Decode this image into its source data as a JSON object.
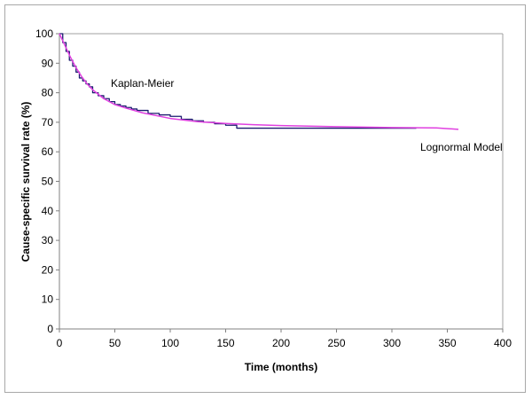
{
  "chart_data": {
    "type": "line",
    "title": "",
    "xlabel": "Time (months)",
    "ylabel": "Cause-specific survival rate (%)",
    "xlim": [
      0,
      400
    ],
    "ylim": [
      0,
      100
    ],
    "x_ticks": [
      0,
      50,
      100,
      150,
      200,
      250,
      300,
      350,
      400
    ],
    "y_ticks": [
      0,
      10,
      20,
      30,
      40,
      50,
      60,
      70,
      80,
      90,
      100
    ],
    "grid": false,
    "legend": "none (inline annotations)",
    "annotations": [
      {
        "text": "Kaplan-Meier",
        "x": 155,
        "y": 83
      },
      {
        "text": "Lognormal Model",
        "x": 365,
        "y": 62
      }
    ],
    "series": [
      {
        "name": "Kaplan-Meier",
        "style": "step",
        "color": "#1a1a6e",
        "x": [
          0,
          3,
          6,
          9,
          12,
          15,
          18,
          21,
          24,
          27,
          30,
          35,
          40,
          45,
          50,
          55,
          60,
          65,
          70,
          80,
          90,
          100,
          110,
          120,
          130,
          140,
          150,
          160,
          200,
          250,
          300,
          322
        ],
        "y": [
          100,
          97,
          94,
          91,
          89,
          87,
          85,
          84,
          83,
          82,
          80,
          79,
          78,
          77,
          76,
          75.5,
          75,
          74.5,
          74,
          73,
          72.5,
          72,
          71,
          70.5,
          70,
          69.5,
          69,
          68,
          68,
          68,
          68,
          68
        ]
      },
      {
        "name": "Lognormal Model",
        "style": "smooth",
        "color": "#e040e0",
        "x": [
          0,
          5,
          10,
          15,
          20,
          25,
          30,
          40,
          50,
          60,
          75,
          100,
          125,
          150,
          175,
          200,
          250,
          300,
          340,
          360
        ],
        "y": [
          100,
          96,
          92,
          88.5,
          85.5,
          83,
          81,
          78,
          76,
          74.8,
          73.2,
          71.3,
          70.2,
          69.6,
          69.2,
          68.9,
          68.5,
          68.2,
          68.1,
          67.6
        ]
      }
    ]
  },
  "axes": {
    "x_title": "Time (months)",
    "y_title": "Cause-specific survival rate (%)",
    "x_tick_labels": [
      "0",
      "50",
      "100",
      "150",
      "200",
      "250",
      "300",
      "350",
      "400"
    ],
    "y_tick_labels": [
      "0",
      "10",
      "20",
      "30",
      "40",
      "50",
      "60",
      "70",
      "80",
      "90",
      "100"
    ]
  },
  "labels": {
    "km": "Kaplan-Meier",
    "lognormal": "Lognormal Model"
  },
  "colors": {
    "km_line": "#1a1a6e",
    "lognormal_line": "#e040e0",
    "axis": "#808080",
    "frame": "#a8a8a8"
  }
}
